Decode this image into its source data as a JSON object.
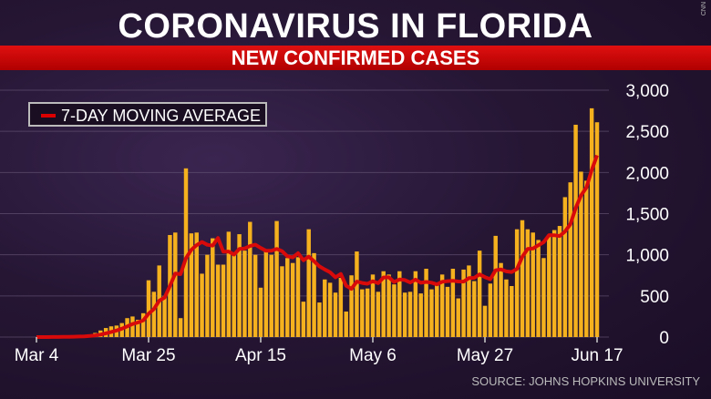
{
  "header": {
    "title": "CORONAVIRUS IN FLORIDA",
    "subtitle": "NEW CONFIRMED CASES",
    "network": "CNN"
  },
  "source": "SOURCE: JOHNS HOPKINS UNIVERSITY",
  "chart_data": {
    "type": "bar",
    "title": "CORONAVIRUS IN FLORIDA",
    "subtitle": "NEW CONFIRMED CASES",
    "xlabel": "",
    "ylabel": "",
    "ylim": [
      0,
      3000
    ],
    "yticks": [
      0,
      500,
      1000,
      1500,
      2000,
      2500,
      3000
    ],
    "ytick_labels": [
      "0",
      "500",
      "1,000",
      "1,500",
      "2,000",
      "2,500",
      "3,000"
    ],
    "xtick_labels": [
      "Mar 4",
      "Mar 25",
      "Apr 15",
      "May 6",
      "May 27",
      "Jun 17"
    ],
    "xtick_day_index": [
      0,
      21,
      42,
      63,
      84,
      105
    ],
    "legend": {
      "label": "7-DAY MOVING AVERAGE",
      "placement": "top-left"
    },
    "colors": {
      "bar": "#f5b21e",
      "line": "#d80a0a"
    },
    "start_date": "Mar 4",
    "values": [
      0,
      0,
      1,
      2,
      4,
      6,
      8,
      10,
      15,
      20,
      30,
      50,
      80,
      110,
      130,
      140,
      170,
      230,
      250,
      210,
      290,
      690,
      550,
      870,
      500,
      1240,
      1270,
      230,
      2050,
      1260,
      1270,
      770,
      1000,
      1200,
      880,
      880,
      1280,
      1000,
      1250,
      1050,
      1400,
      1000,
      600,
      1040,
      1000,
      1410,
      860,
      960,
      900,
      970,
      430,
      1310,
      1020,
      420,
      700,
      660,
      540,
      720,
      310,
      750,
      1040,
      580,
      590,
      760,
      550,
      800,
      760,
      640,
      800,
      540,
      550,
      800,
      530,
      830,
      580,
      650,
      760,
      610,
      830,
      470,
      820,
      870,
      680,
      1050,
      380,
      650,
      1230,
      900,
      700,
      620,
      1310,
      1420,
      1310,
      1270,
      1180,
      960,
      1220,
      1300,
      1350,
      1700,
      1880,
      2580,
      2010,
      1900,
      2780,
      2610
    ]
  }
}
